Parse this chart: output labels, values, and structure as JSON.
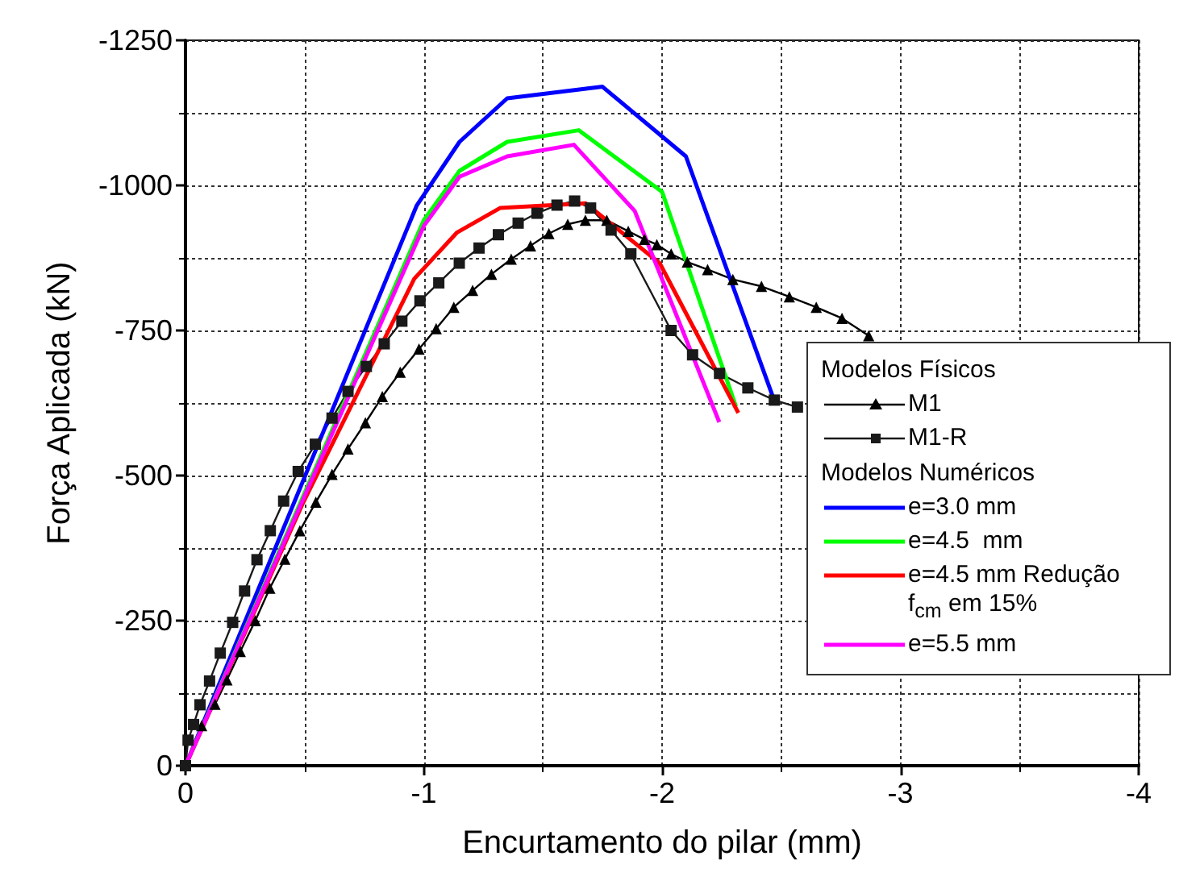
{
  "chart_data": {
    "type": "line",
    "xlabel": "Encurtamento do pilar (mm)",
    "ylabel": "Força Aplicada (kN)",
    "xlim": [
      0,
      -4
    ],
    "xticks": [
      0,
      -1,
      -2,
      -3,
      -4
    ],
    "ylim": [
      0,
      -1250
    ],
    "yticks": [
      0,
      -250,
      -500,
      -750,
      -1000,
      -1250
    ],
    "grid": true,
    "legend": "bottom right",
    "legend_title": "Modelos Físicos",
    "annotations": [
      "Modelos Numéricos"
    ],
    "series": [
      {
        "name": "M1",
        "color": "#000000",
        "marker": "triangle",
        "x": [
          0,
          -0.068,
          -0.124,
          -0.174,
          -0.23,
          -0.293,
          -0.354,
          -0.417,
          -0.48,
          -0.547,
          -0.615,
          -0.682,
          -0.755,
          -0.826,
          -0.901,
          -0.98,
          -1.052,
          -1.126,
          -1.205,
          -1.284,
          -1.367,
          -1.448,
          -1.525,
          -1.604,
          -1.678,
          -1.768,
          -1.858,
          -1.926,
          -1.978,
          -2.038,
          -2.106,
          -2.191,
          -2.297,
          -2.417,
          -2.534,
          -2.647,
          -2.755,
          -2.867
        ],
        "values": [
          0,
          -69,
          -106,
          -148,
          -197,
          -250,
          -306,
          -356,
          -405,
          -454,
          -502,
          -546,
          -591,
          -636,
          -678,
          -718,
          -753,
          -790,
          -819,
          -847,
          -873,
          -896,
          -917,
          -933,
          -940,
          -940,
          -921,
          -907,
          -898,
          -882,
          -868,
          -855,
          -838,
          -826,
          -808,
          -790,
          -771,
          -741
        ]
      },
      {
        "name": "M1-R",
        "color": "#1a1a1a",
        "marker": "square",
        "x": [
          0,
          -0.011,
          -0.034,
          -0.061,
          -0.101,
          -0.146,
          -0.198,
          -0.248,
          -0.3,
          -0.356,
          -0.412,
          -0.473,
          -0.545,
          -0.615,
          -0.682,
          -0.759,
          -0.834,
          -0.908,
          -0.984,
          -1.063,
          -1.149,
          -1.232,
          -1.313,
          -1.396,
          -1.475,
          -1.559,
          -1.633,
          -1.7,
          -1.786,
          -1.869,
          -2.038,
          -2.128,
          -2.241,
          -2.36,
          -2.471,
          -2.568
        ],
        "values": [
          0,
          -44,
          -71,
          -105,
          -146,
          -194,
          -247,
          -301,
          -355,
          -405,
          -456,
          -507,
          -554,
          -599,
          -645,
          -688,
          -727,
          -766,
          -801,
          -832,
          -866,
          -892,
          -915,
          -935,
          -952,
          -966,
          -973,
          -961,
          -923,
          -882,
          -750,
          -708,
          -676,
          -651,
          -630,
          -618
        ]
      },
      {
        "name": "e=3.0 mm",
        "color": "#0000ff",
        "x": [
          0,
          -0.97,
          -1.15,
          -1.35,
          -1.75,
          -2.1,
          -2.47
        ],
        "values": [
          0,
          -965,
          -1075,
          -1150,
          -1170,
          -1050,
          -630
        ]
      },
      {
        "name": "e=4.5  mm",
        "color": "#00ff00",
        "x": [
          0,
          -1.0,
          -1.15,
          -1.35,
          -1.65,
          -2.0,
          -2.31
        ],
        "values": [
          0,
          -940,
          -1025,
          -1075,
          -1095,
          -989,
          -619
        ]
      },
      {
        "name": "e=4.5 mm Redução f$_{cm}$ em 15%",
        "color": "#ff0000",
        "x": [
          0,
          -0.49,
          -0.96,
          -1.14,
          -1.32,
          -1.68,
          -1.99,
          -2.32
        ],
        "values": [
          0,
          -450,
          -839,
          -919,
          -961,
          -969,
          -866,
          -608
        ]
      },
      {
        "name": "e=5.5 mm",
        "color": "#ff00ff",
        "x": [
          0,
          -1.0,
          -1.15,
          -1.35,
          -1.63,
          -1.885,
          -2.24
        ],
        "values": [
          0,
          -930,
          -1015,
          -1050,
          -1070,
          -956,
          -592
        ]
      }
    ]
  }
}
